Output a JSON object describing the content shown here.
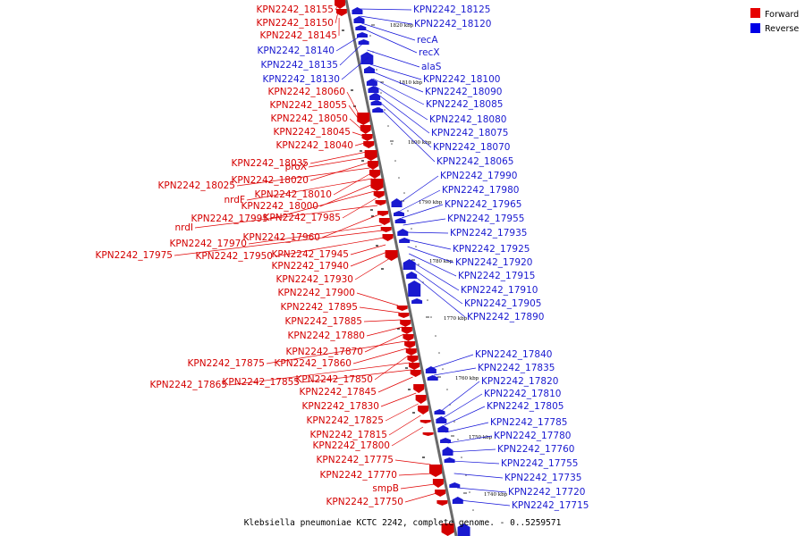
{
  "legend": {
    "forward_label": "Forward",
    "reverse_label": "Reverse",
    "forward_color": "#e60000",
    "reverse_color": "#0000e6"
  },
  "caption": "Klebsiella pneumoniae KCTC 2242, complete genome. - 0..5259571",
  "ticks": [
    "1820 kbp",
    "1810 kbp",
    "1800 kbp",
    "1790 kbp",
    "1780 kbp",
    "1770 kbp",
    "1760 kbp",
    "1750 kbp",
    "1740 kbp"
  ],
  "forward_genes": [
    "KPN2242_18155",
    "KPN2242_18150",
    "KPN2242_18145",
    "KPN2242_18060",
    "KPN2242_18055",
    "KPN2242_18050",
    "KPN2242_18045",
    "KPN2242_18040",
    "KPN2242_18035",
    "proX",
    "KPN2242_18020",
    "KPN2242_18025",
    "KPN2242_18010",
    "nrdF",
    "KPN2242_18000",
    "KPN2242_17995",
    "KPN2242_17985",
    "nrdI",
    "KPN2242_17960",
    "KPN2242_17970",
    "KPN2242_17975",
    "KPN2242_17950",
    "KPN2242_17945",
    "KPN2242_17940",
    "KPN2242_17930",
    "KPN2242_17900",
    "KPN2242_17895",
    "KPN2242_17885",
    "KPN2242_17880",
    "KPN2242_17870",
    "KPN2242_17875",
    "KPN2242_17860",
    "KPN2242_17850",
    "KPN2242_17865",
    "KPN2242_17855",
    "KPN2242_17845",
    "KPN2242_17830",
    "KPN2242_17825",
    "KPN2242_17815",
    "KPN2242_17800",
    "KPN2242_17775",
    "KPN2242_17770",
    "smpB",
    "KPN2242_17750"
  ],
  "reverse_genes": [
    "KPN2242_18125",
    "KPN2242_18120",
    "recA",
    "recX",
    "KPN2242_18140",
    "KPN2242_18135",
    "alaS",
    "KPN2242_18130",
    "KPN2242_18100",
    "KPN2242_18090",
    "KPN2242_18085",
    "KPN2242_18080",
    "KPN2242_18075",
    "KPN2242_18070",
    "KPN2242_18065",
    "KPN2242_17990",
    "KPN2242_17980",
    "KPN2242_17965",
    "KPN2242_17955",
    "KPN2242_17935",
    "KPN2242_17925",
    "KPN2242_17920",
    "KPN2242_17915",
    "KPN2242_17910",
    "KPN2242_17905",
    "KPN2242_17890",
    "KPN2242_17840",
    "KPN2242_17835",
    "KPN2242_17820",
    "KPN2242_17810",
    "KPN2242_17805",
    "KPN2242_17785",
    "KPN2242_17780",
    "KPN2242_17760",
    "KPN2242_17755",
    "KPN2242_17735",
    "KPN2242_17720",
    "KPN2242_17715"
  ]
}
